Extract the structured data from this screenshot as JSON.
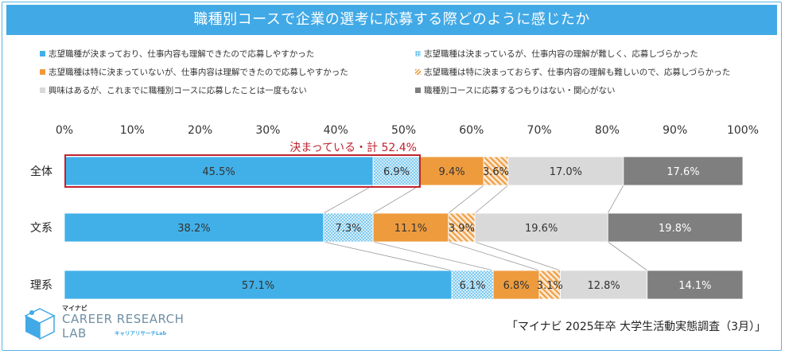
{
  "title": "職種別コースで企業の選考に応募する際どのように感じたか",
  "legend": [
    {
      "label": "志望職種が決まっており、仕事内容も理解できたので応募しやすかった",
      "color": "#41b0e8",
      "pattern": "solid"
    },
    {
      "label": "志望職種は決まっているが、仕事内容の理解が難しく、応募しづらかった",
      "color": "#41b0e8",
      "pattern": "dots"
    },
    {
      "label": "志望職種は特に決まっていないが、仕事内容は理解できたので応募しやすかった",
      "color": "#ee9b3d",
      "pattern": "solid"
    },
    {
      "label": "志望職種は特に決まっておらず、仕事内容の理解も難しいので、応募しづらかった",
      "color": "#ee9b3d",
      "pattern": "hatch"
    },
    {
      "label": "興味はあるが、これまでに職種別コースに応募したことは一度もない",
      "color": "#d9d9d9",
      "pattern": "solid"
    },
    {
      "label": "職種別コースに応募するつもりはない・関心がない",
      "color": "#7f7f7f",
      "pattern": "solid"
    }
  ],
  "chart_data": {
    "type": "bar",
    "orientation": "horizontal",
    "stacked": true,
    "percent": true,
    "categories": [
      "全体",
      "文系",
      "理系"
    ],
    "series": [
      {
        "name": "志望職種が決まっており、仕事内容も理解できたので応募しやすかった",
        "values": [
          45.5,
          38.2,
          57.1
        ]
      },
      {
        "name": "志望職種は決まっているが、仕事内容の理解が難しく、応募しづらかった",
        "values": [
          6.9,
          7.3,
          6.1
        ]
      },
      {
        "name": "志望職種は特に決まっていないが、仕事内容は理解できたので応募しやすかった",
        "values": [
          9.4,
          11.1,
          6.8
        ]
      },
      {
        "name": "志望職種は特に決まっておらず、仕事内容の理解も難しいので、応募しづらかった",
        "values": [
          3.6,
          3.9,
          3.1
        ]
      },
      {
        "name": "興味はあるが、これまでに職種別コースに応募したことは一度もない",
        "values": [
          17.0,
          19.6,
          12.8
        ]
      },
      {
        "name": "職種別コースに応募するつもりはない・関心がない",
        "values": [
          17.6,
          19.8,
          14.1
        ]
      }
    ],
    "xlim": [
      0,
      100
    ],
    "ticks": [
      "0%",
      "10%",
      "20%",
      "30%",
      "40%",
      "50%",
      "60%",
      "70%",
      "80%",
      "90%",
      "100%"
    ],
    "annotation": {
      "text": "決まっている・計",
      "value": "52.4%"
    },
    "value_labels": [
      [
        "45.5%",
        "6.9%",
        "9.4%",
        "3.6%",
        "17.0%",
        "17.6%"
      ],
      [
        "38.2%",
        "7.3%",
        "11.1%",
        "3.9%",
        "19.6%",
        "19.8%"
      ],
      [
        "57.1%",
        "6.1%",
        "6.8%",
        "3.1%",
        "12.8%",
        "14.1%"
      ]
    ]
  },
  "logo": {
    "small": "マイナビ",
    "line1": "CAREER RESEARCH",
    "line2": "LAB",
    "sub": "キャリアリサーチLab"
  },
  "source": "「マイナビ 2025年卒 大学生活動実態調査（3月）」"
}
